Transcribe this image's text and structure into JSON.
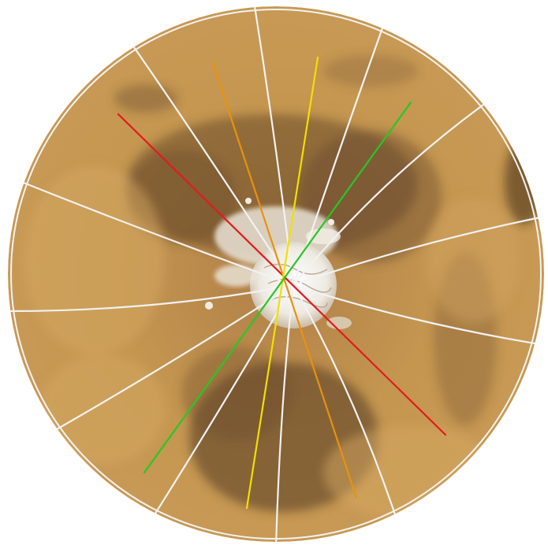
{
  "map": {
    "projection": "polar-stereographic",
    "subject": "martian-north-polar-region",
    "colors": {
      "background": "#ffffff",
      "terrain_light": "#c99a52",
      "terrain_mid": "#b5853f",
      "terrain_dark": "#5a4029",
      "ice_cap": "#f4f1ec",
      "graticule": "#f2f2f2"
    },
    "tracks": [
      {
        "id": "red-track",
        "color": "#e41a1a"
      },
      {
        "id": "orange-track",
        "color": "#e8920f"
      },
      {
        "id": "yellow-track",
        "color": "#f2e000"
      },
      {
        "id": "green-track",
        "color": "#26c826"
      }
    ]
  }
}
